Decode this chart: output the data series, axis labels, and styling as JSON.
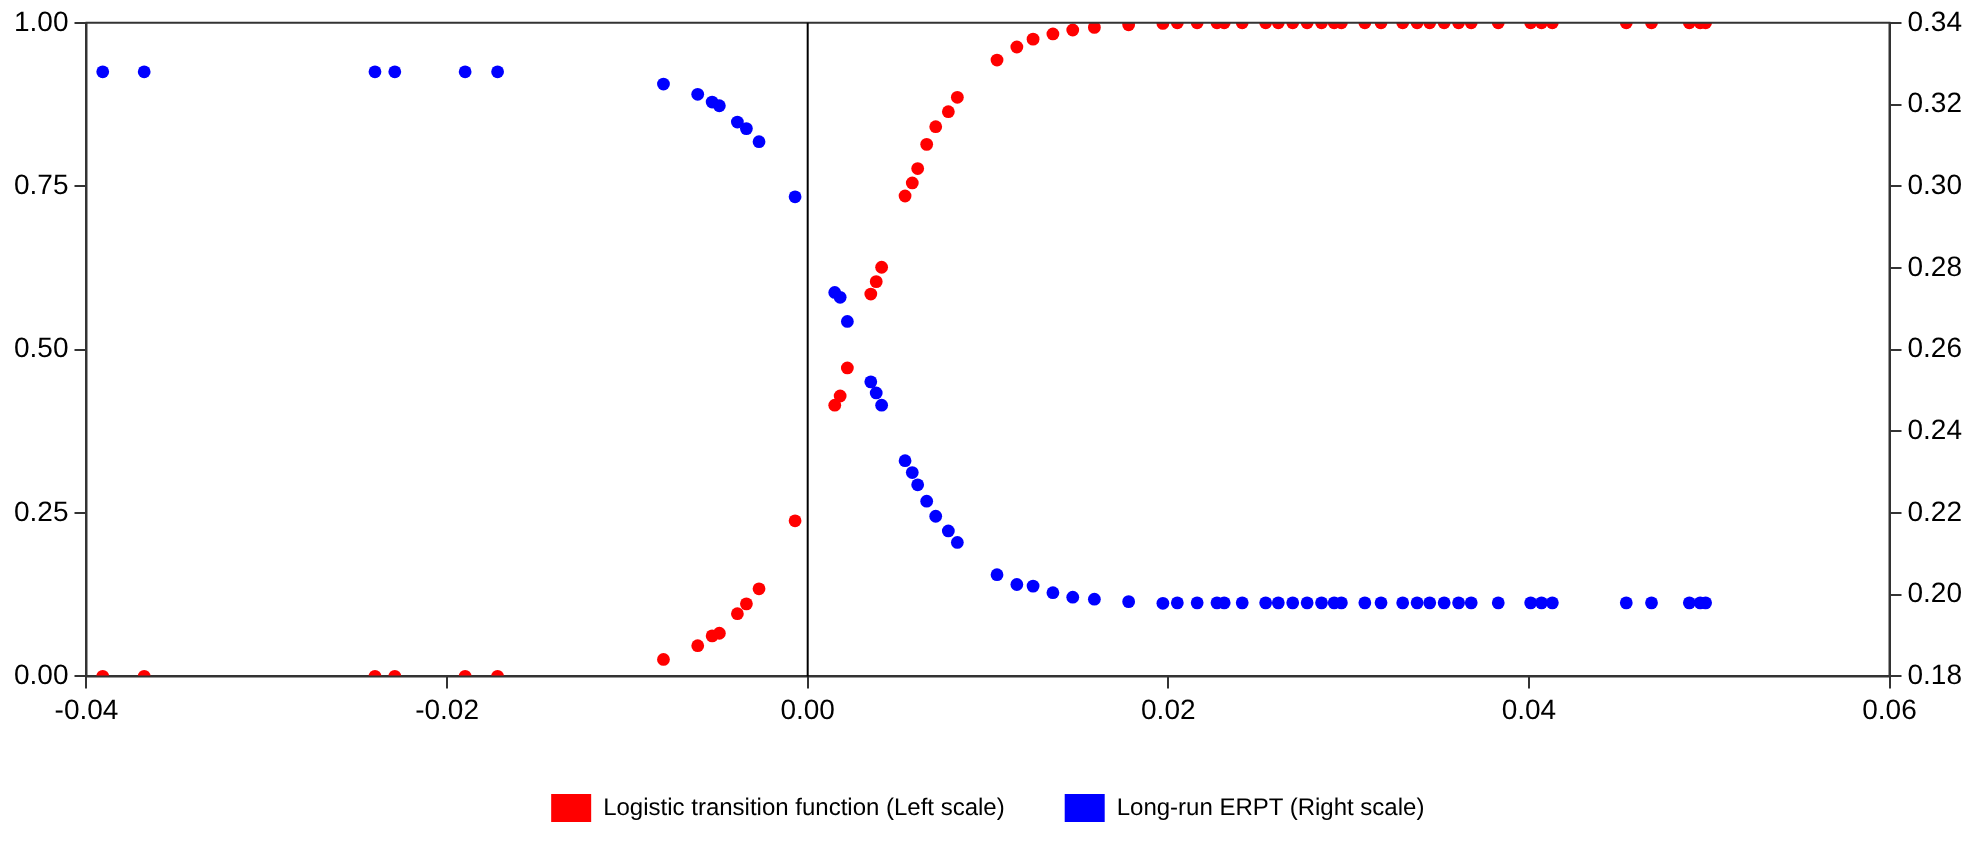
{
  "chart_data": {
    "type": "scatter",
    "xlim": [
      -0.04,
      0.06
    ],
    "xticks": [
      -0.04,
      -0.02,
      {
        "value": 0,
        "label": "0.00"
      },
      0.02,
      0.04,
      0.06
    ],
    "ylim": [
      0,
      1
    ],
    "yticks": [
      {
        "value": 0,
        "label": "0.00"
      },
      0.25,
      {
        "value": 0.5,
        "label": "0.50"
      },
      0.75,
      {
        "value": 1,
        "label": "1.00"
      }
    ],
    "y2lim": [
      0.18,
      0.34
    ],
    "y2ticks": [
      0.18,
      {
        "value": 0.2,
        "label": "0.20"
      },
      0.22,
      0.24,
      0.26,
      0.28,
      {
        "value": 0.3,
        "label": "0.30"
      },
      0.32,
      0.34
    ],
    "grid": false,
    "legend": "bottom",
    "marker": "circle",
    "ref_lines": [
      {
        "axis": "x",
        "value": 0,
        "color": "#000000"
      }
    ],
    "series": [
      {
        "name": "Logistic transition function (Left scale)",
        "color": "#ff0000",
        "axis": "y",
        "x": [
          -0.0391,
          -0.0368,
          -0.024,
          -0.0229,
          -0.019,
          -0.0172,
          -0.008,
          -0.0061,
          -0.0053,
          -0.0049,
          -0.0039,
          -0.0034,
          -0.0027,
          -0.0007,
          0.0015,
          0.0018,
          0.0022,
          0.0035,
          0.0038,
          0.0041,
          0.0054,
          0.0058,
          0.0061,
          0.0066,
          0.0071,
          0.0078,
          0.0083,
          0.0105,
          0.0116,
          0.0125,
          0.0136,
          0.0147,
          0.0159,
          0.0178,
          0.0197,
          0.0205,
          0.0216,
          0.0227,
          0.0231,
          0.0241,
          0.0254,
          0.0261,
          0.0269,
          0.0277,
          0.0285,
          0.0292,
          0.0296,
          0.0309,
          0.0318,
          0.033,
          0.0338,
          0.0345,
          0.0353,
          0.0361,
          0.0368,
          0.0383,
          0.0401,
          0.0407,
          0.0413,
          0.0454,
          0.0468,
          0.0489,
          0.0495,
          0.0498
        ],
        "values": [
          0,
          0,
          0,
          0,
          0,
          0,
          0.026,
          0.047,
          0.062,
          0.066,
          0.096,
          0.111,
          0.134,
          0.238,
          0.415,
          0.429,
          0.472,
          0.585,
          0.604,
          0.626,
          0.735,
          0.755,
          0.777,
          0.814,
          0.841,
          0.864,
          0.886,
          0.943,
          0.963,
          0.975,
          0.983,
          0.989,
          0.993,
          0.997,
          0.999,
          1,
          1,
          1,
          1,
          1,
          1,
          1,
          1,
          1,
          1,
          1,
          1,
          1,
          1,
          1,
          1,
          1,
          1,
          1,
          1,
          1,
          1,
          1,
          1,
          1,
          1,
          1,
          1,
          1
        ]
      },
      {
        "name": "Long-run ERPT (Right scale)",
        "color": "#0000ff",
        "axis": "y2",
        "x": [
          -0.0391,
          -0.0368,
          -0.024,
          -0.0229,
          -0.019,
          -0.0172,
          -0.008,
          -0.0061,
          -0.0053,
          -0.0049,
          -0.0039,
          -0.0034,
          -0.0027,
          -0.0007,
          0.0015,
          0.0018,
          0.0022,
          0.0035,
          0.0038,
          0.0041,
          0.0054,
          0.0058,
          0.0061,
          0.0066,
          0.0071,
          0.0078,
          0.0083,
          0.0105,
          0.0116,
          0.0125,
          0.0136,
          0.0147,
          0.0159,
          0.0178,
          0.0197,
          0.0205,
          0.0216,
          0.0227,
          0.0231,
          0.0241,
          0.0254,
          0.0261,
          0.0269,
          0.0277,
          0.0285,
          0.0292,
          0.0296,
          0.0309,
          0.0318,
          0.033,
          0.0338,
          0.0345,
          0.0353,
          0.0361,
          0.0368,
          0.0383,
          0.0401,
          0.0407,
          0.0413,
          0.0454,
          0.0468,
          0.0489,
          0.0495,
          0.0498
        ],
        "values": [
          0.328,
          0.328,
          0.328,
          0.328,
          0.328,
          0.328,
          0.325,
          0.3225,
          0.3206,
          0.3197,
          0.3157,
          0.3141,
          0.3109,
          0.2974,
          0.274,
          0.2728,
          0.2669,
          0.2521,
          0.2494,
          0.2464,
          0.2328,
          0.2299,
          0.2269,
          0.2229,
          0.2192,
          0.2156,
          0.2128,
          0.2049,
          0.2025,
          0.2021,
          0.2005,
          0.1994,
          0.1989,
          0.1983,
          0.1979,
          0.198,
          0.198,
          0.198,
          0.198,
          0.198,
          0.198,
          0.198,
          0.198,
          0.198,
          0.198,
          0.198,
          0.198,
          0.198,
          0.198,
          0.198,
          0.198,
          0.198,
          0.198,
          0.198,
          0.198,
          0.198,
          0.198,
          0.198,
          0.198,
          0.198,
          0.198,
          0.198,
          0.198,
          0.198
        ]
      }
    ]
  }
}
